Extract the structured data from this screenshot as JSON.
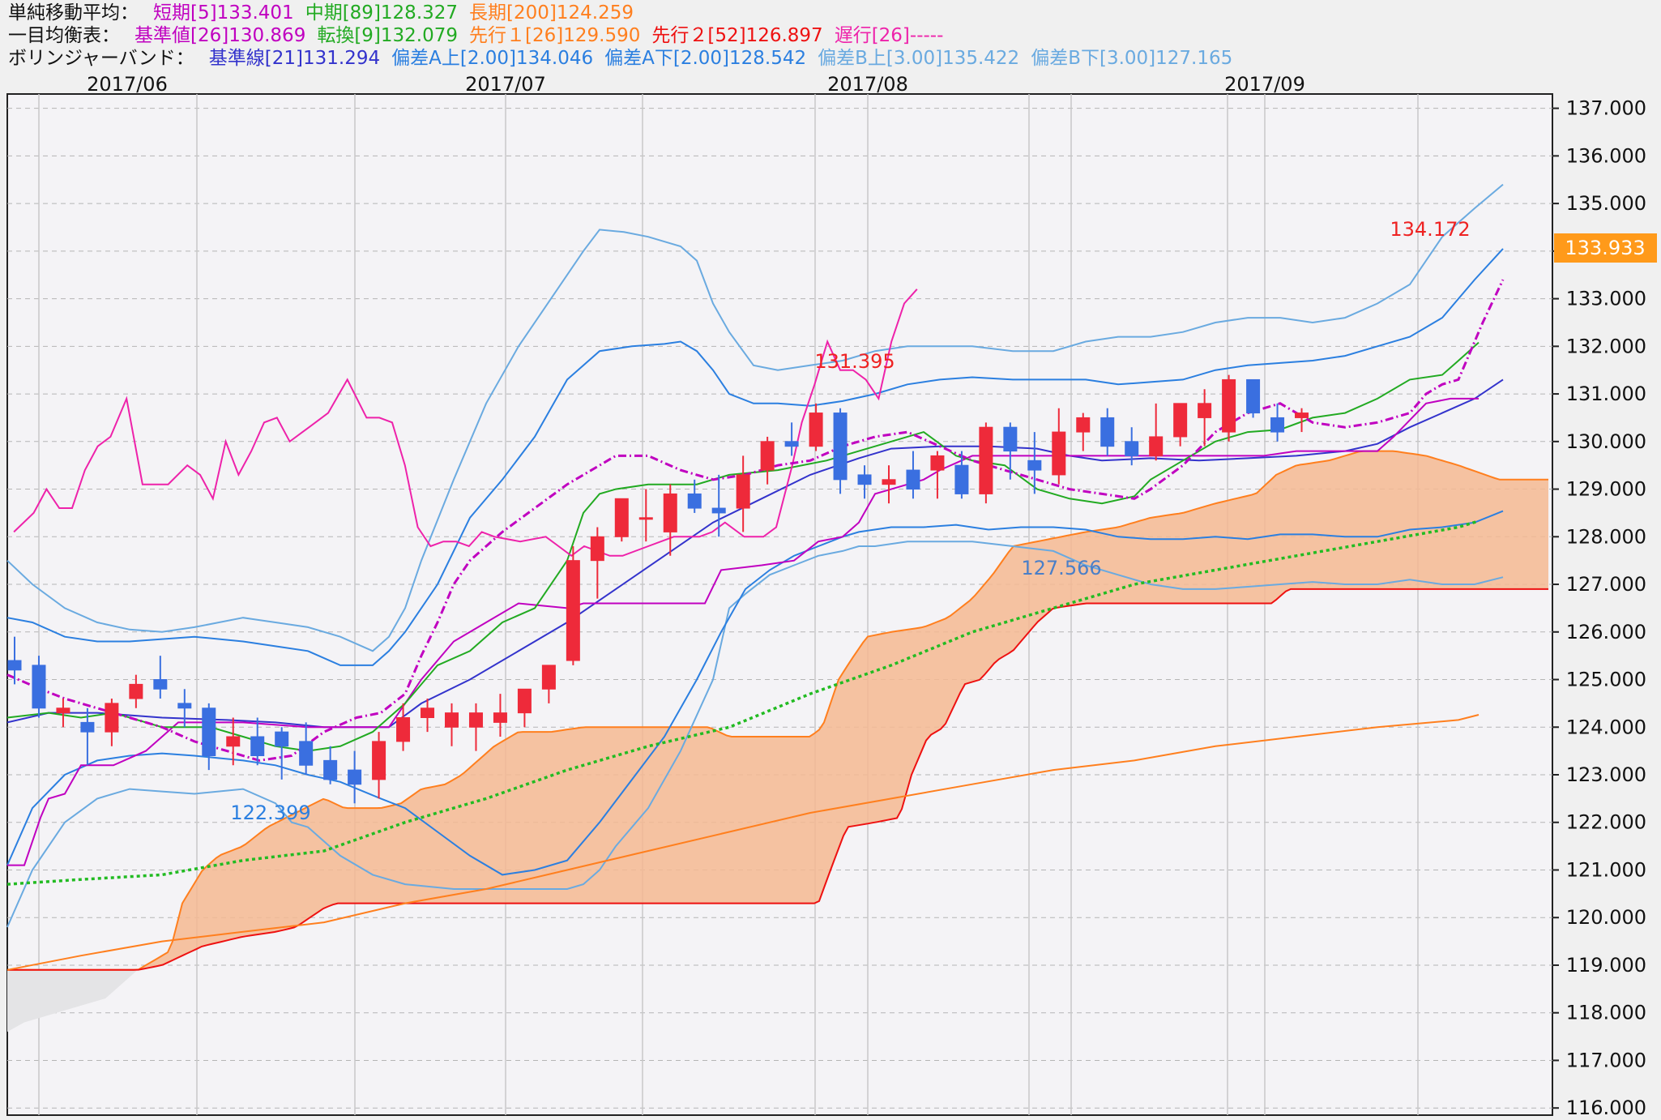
{
  "legend": {
    "sma_label": "単純移動平均：",
    "sma": [
      {
        "text": "短期[5]133.401",
        "color": "#c000c0"
      },
      {
        "text": "中期[89]128.327",
        "color": "#22aa22"
      },
      {
        "text": "長期[200]124.259",
        "color": "#ff7f1e"
      }
    ],
    "ichimoku_label": "一目均衡表：",
    "ichimoku": [
      {
        "text": "基準値[26]130.869",
        "color": "#c000c0"
      },
      {
        "text": "転換[9]132.079",
        "color": "#22aa22"
      },
      {
        "text": "先行１[26]129.590",
        "color": "#ff7f1e"
      },
      {
        "text": "先行２[52]126.897",
        "color": "#ee1111"
      },
      {
        "text": "遅行[26]-----",
        "color": "#ee22aa"
      }
    ],
    "bollinger_label": "ボリンジャーバンド：",
    "bollinger": [
      {
        "text": "基準線[21]131.294",
        "color": "#3333cc"
      },
      {
        "text": "偏差A上[2.00]134.046",
        "color": "#2b7fe0"
      },
      {
        "text": "偏差A下[2.00]128.542",
        "color": "#2b7fe0"
      },
      {
        "text": "偏差B上[3.00]135.422",
        "color": "#6aaae0"
      },
      {
        "text": "偏差B下[3.00]127.165",
        "color": "#6aaae0"
      }
    ]
  },
  "chart_data": {
    "type": "candlestick",
    "months": [
      "2017/06",
      "2017/07",
      "2017/08",
      "2017/09"
    ],
    "y_ticks": [
      "137.000",
      "136.000",
      "135.000",
      "134.000",
      "133.000",
      "132.000",
      "131.000",
      "130.000",
      "129.000",
      "128.000",
      "127.000",
      "126.000",
      "125.000",
      "124.000",
      "123.000",
      "122.000",
      "121.000",
      "120.000",
      "119.000",
      "118.000",
      "117.000",
      "116.000"
    ],
    "ylim": [
      115.85,
      137.3
    ],
    "current_price": "133.933",
    "annotations": [
      {
        "text": "134.172",
        "kind": "high",
        "index": 58,
        "value": 134.172
      },
      {
        "text": "131.395",
        "kind": "high",
        "index": 31,
        "value": 131.395
      },
      {
        "text": "127.566",
        "kind": "low",
        "index": 39,
        "value": 127.566
      },
      {
        "text": "122.399",
        "kind": "low",
        "index": 10,
        "value": 122.399
      }
    ],
    "candles": [
      [
        125.4,
        125.9,
        124.9,
        125.2
      ],
      [
        125.3,
        125.5,
        124.2,
        124.4
      ],
      [
        124.3,
        124.6,
        124.0,
        124.4
      ],
      [
        124.1,
        124.4,
        123.2,
        123.9
      ],
      [
        123.9,
        124.6,
        123.6,
        124.5
      ],
      [
        124.6,
        125.1,
        124.4,
        124.9
      ],
      [
        125.0,
        125.5,
        124.6,
        124.8
      ],
      [
        124.5,
        124.8,
        124.0,
        124.4
      ],
      [
        124.4,
        124.5,
        123.1,
        123.4
      ],
      [
        123.6,
        124.2,
        123.2,
        123.8
      ],
      [
        123.8,
        124.2,
        123.2,
        123.4
      ],
      [
        123.9,
        124.0,
        122.9,
        123.6
      ],
      [
        123.7,
        124.1,
        123.0,
        123.2
      ],
      [
        123.3,
        123.6,
        122.8,
        122.9
      ],
      [
        123.1,
        123.5,
        122.4,
        122.8
      ],
      [
        122.9,
        123.9,
        122.5,
        123.7
      ],
      [
        123.7,
        124.5,
        123.5,
        124.2
      ],
      [
        124.2,
        124.6,
        123.9,
        124.4
      ],
      [
        124.0,
        124.5,
        123.6,
        124.3
      ],
      [
        124.0,
        124.5,
        123.5,
        124.3
      ],
      [
        124.1,
        124.7,
        123.8,
        124.3
      ],
      [
        124.3,
        124.7,
        124.0,
        124.8
      ],
      [
        124.8,
        125.2,
        124.5,
        125.3
      ],
      [
        125.4,
        127.8,
        125.3,
        127.5
      ],
      [
        127.5,
        128.2,
        126.7,
        128.0
      ],
      [
        128.0,
        128.8,
        127.9,
        128.8
      ],
      [
        128.4,
        129.0,
        127.9,
        128.4
      ],
      [
        128.1,
        129.1,
        127.6,
        128.9
      ],
      [
        128.9,
        129.2,
        128.5,
        128.6
      ],
      [
        128.6,
        129.3,
        128.0,
        128.5
      ],
      [
        128.6,
        129.7,
        128.1,
        129.3
      ],
      [
        129.4,
        130.1,
        129.1,
        130.0
      ],
      [
        130.0,
        130.4,
        129.7,
        129.9
      ],
      [
        129.9,
        130.8,
        129.8,
        130.6
      ],
      [
        130.6,
        130.7,
        128.9,
        129.2
      ],
      [
        129.3,
        129.5,
        128.8,
        129.1
      ],
      [
        129.1,
        129.5,
        128.7,
        129.2
      ],
      [
        129.4,
        129.8,
        128.8,
        129.0
      ],
      [
        129.4,
        129.8,
        128.8,
        129.7
      ],
      [
        129.5,
        129.8,
        128.8,
        128.9
      ],
      [
        128.9,
        130.4,
        128.7,
        130.3
      ],
      [
        130.3,
        130.4,
        129.2,
        129.8
      ],
      [
        129.6,
        130.2,
        128.9,
        129.4
      ],
      [
        129.3,
        130.7,
        129.1,
        130.2
      ],
      [
        130.2,
        130.6,
        129.8,
        130.5
      ],
      [
        130.5,
        130.7,
        129.7,
        129.9
      ],
      [
        130.0,
        130.3,
        129.5,
        129.7
      ],
      [
        129.7,
        130.8,
        129.6,
        130.1
      ],
      [
        130.1,
        130.8,
        129.9,
        130.8
      ],
      [
        130.5,
        131.1,
        129.9,
        130.8
      ],
      [
        130.2,
        131.4,
        130.0,
        131.3
      ],
      [
        131.3,
        131.2,
        130.5,
        130.6
      ],
      [
        130.5,
        130.8,
        130.0,
        130.2
      ],
      [
        130.5,
        130.7,
        130.2,
        130.6
      ]
    ],
    "summary": {
      "high": 134.172,
      "high_label_index": 58,
      "mid_high": 131.395,
      "mid_low": 127.566,
      "low": 122.399
    }
  }
}
